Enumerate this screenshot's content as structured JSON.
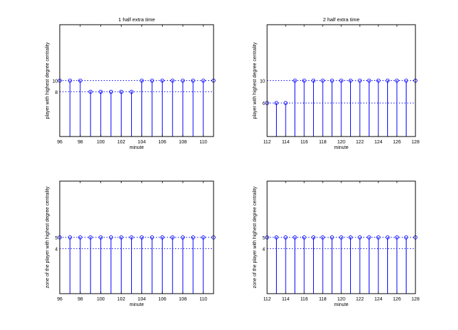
{
  "colors": {
    "stem": "#0000ff",
    "axes": "#000000",
    "background": "#ffffff"
  },
  "chart_data": [
    {
      "type": "stem",
      "title": "1 half extra time",
      "xlabel": "minute",
      "ylabel": "player with highest degree centrality",
      "xlim": [
        96,
        111
      ],
      "ylim": [
        0,
        20
      ],
      "xticks": [
        "96",
        "98",
        "100",
        "102",
        "104",
        "106",
        "108",
        "110"
      ],
      "reference_lines": [
        {
          "value": 10,
          "label": "10"
        },
        {
          "value": 8,
          "label": "8"
        }
      ],
      "x": [
        96,
        97,
        98,
        99,
        100,
        101,
        102,
        103,
        104,
        105,
        106,
        107,
        108,
        109,
        110,
        111
      ],
      "values": [
        10,
        10,
        10,
        8,
        8,
        8,
        8,
        8,
        10,
        10,
        10,
        10,
        10,
        10,
        10,
        10
      ]
    },
    {
      "type": "stem",
      "title": "2 half extra time",
      "xlabel": "minute",
      "ylabel": "player with highest degree centrality",
      "xlim": [
        112,
        128
      ],
      "ylim": [
        0,
        20
      ],
      "xticks": [
        "112",
        "114",
        "116",
        "118",
        "120",
        "122",
        "124",
        "126",
        "128"
      ],
      "reference_lines": [
        {
          "value": 10,
          "label": "10"
        },
        {
          "value": 6,
          "label": "6"
        }
      ],
      "x": [
        112,
        113,
        114,
        115,
        116,
        117,
        118,
        119,
        120,
        121,
        122,
        123,
        124,
        125,
        126,
        127,
        128
      ],
      "values": [
        6,
        6,
        6,
        10,
        10,
        10,
        10,
        10,
        10,
        10,
        10,
        10,
        10,
        10,
        10,
        10,
        10
      ]
    },
    {
      "type": "stem",
      "title": "",
      "xlabel": "minute",
      "ylabel": "zone of the player with highest degree centrality",
      "xlim": [
        96,
        111
      ],
      "ylim": [
        0,
        10
      ],
      "xticks": [
        "96",
        "98",
        "100",
        "102",
        "104",
        "106",
        "108",
        "110"
      ],
      "reference_lines": [
        {
          "value": 5,
          "label": "5"
        },
        {
          "value": 4,
          "label": "4"
        }
      ],
      "x": [
        96,
        97,
        98,
        99,
        100,
        101,
        102,
        103,
        104,
        105,
        106,
        107,
        108,
        109,
        110,
        111
      ],
      "values": [
        5,
        5,
        5,
        5,
        5,
        5,
        5,
        5,
        5,
        5,
        5,
        5,
        5,
        5,
        5,
        5
      ]
    },
    {
      "type": "stem",
      "title": "",
      "xlabel": "minute",
      "ylabel": "zone of the player with highest degree centrality",
      "xlim": [
        112,
        128
      ],
      "ylim": [
        0,
        10
      ],
      "xticks": [
        "112",
        "114",
        "116",
        "118",
        "120",
        "122",
        "124",
        "126",
        "128"
      ],
      "reference_lines": [
        {
          "value": 5,
          "label": "5"
        },
        {
          "value": 4,
          "label": "4"
        }
      ],
      "x": [
        112,
        113,
        114,
        115,
        116,
        117,
        118,
        119,
        120,
        121,
        122,
        123,
        124,
        125,
        126,
        127,
        128
      ],
      "values": [
        5,
        5,
        5,
        5,
        5,
        5,
        5,
        5,
        5,
        5,
        5,
        5,
        5,
        5,
        5,
        5,
        5
      ]
    }
  ]
}
